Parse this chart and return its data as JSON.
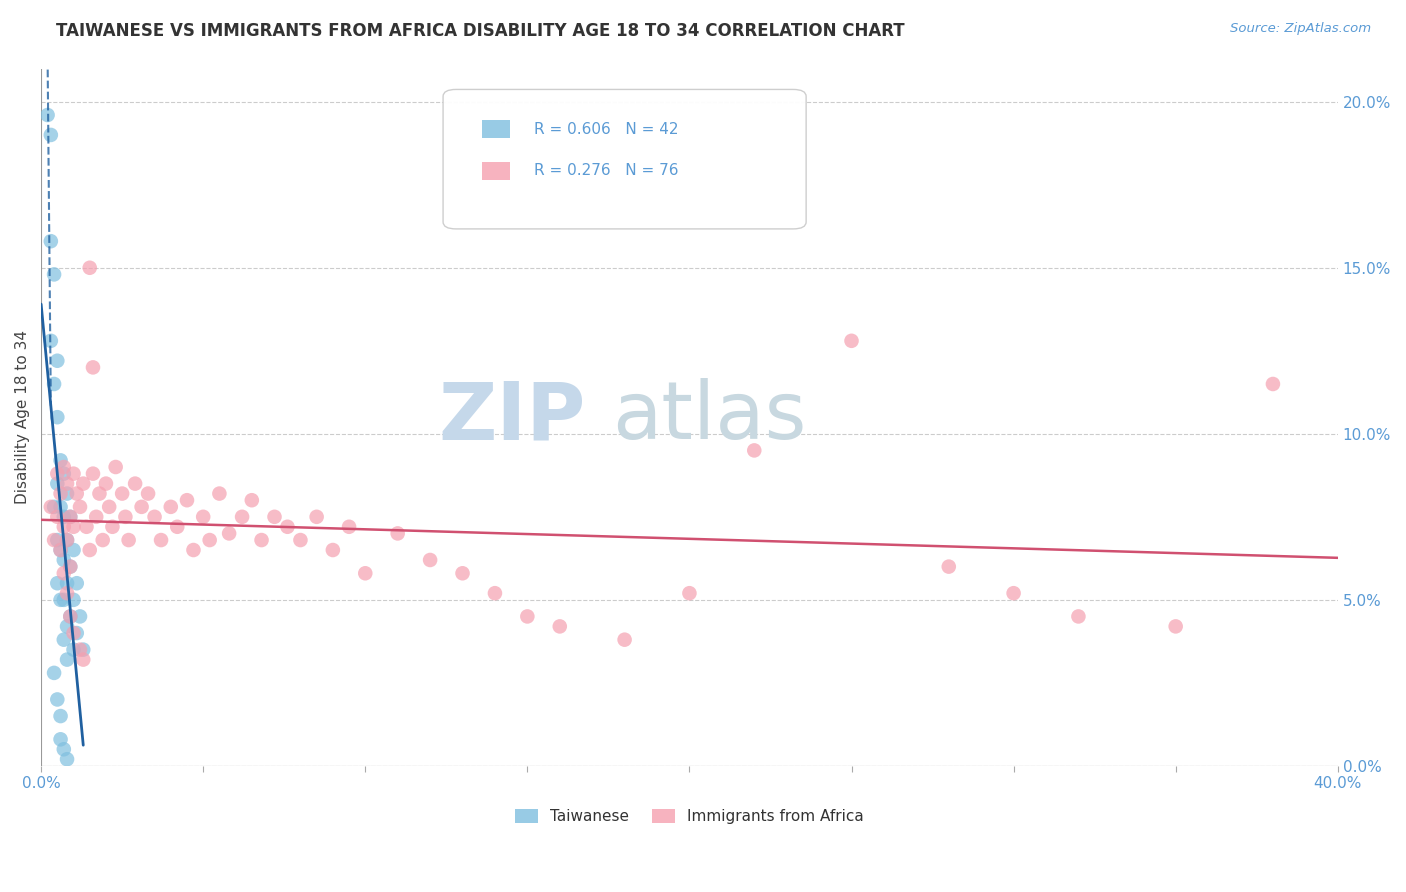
{
  "title": "TAIWANESE VS IMMIGRANTS FROM AFRICA DISABILITY AGE 18 TO 34 CORRELATION CHART",
  "source": "Source: ZipAtlas.com",
  "ylabel": "Disability Age 18 to 34",
  "xlim": [
    0.0,
    0.4
  ],
  "ylim": [
    0.0,
    0.21
  ],
  "xtick_positions": [
    0.0,
    0.05,
    0.1,
    0.15,
    0.2,
    0.25,
    0.3,
    0.35,
    0.4
  ],
  "xtick_labels": [
    "0.0%",
    "",
    "",
    "",
    "",
    "",
    "",
    "",
    "40.0%"
  ],
  "ytick_vals": [
    0.0,
    0.05,
    0.1,
    0.15,
    0.2
  ],
  "ytick_labels": [
    "0.0%",
    "5.0%",
    "10.0%",
    "15.0%",
    "20.0%"
  ],
  "taiwanese_color": "#7fbfdf",
  "african_color": "#f5a0b0",
  "taiwanese_line_color": "#2060a0",
  "african_line_color": "#d05070",
  "taiwanese_R": 0.606,
  "taiwanese_N": 42,
  "african_R": 0.276,
  "african_N": 76,
  "watermark_zip_color": "#c5d8ea",
  "watermark_atlas_color": "#c8d8e0",
  "background_color": "#ffffff",
  "tw_x": [
    0.002,
    0.003,
    0.003,
    0.003,
    0.004,
    0.004,
    0.004,
    0.005,
    0.005,
    0.005,
    0.005,
    0.005,
    0.006,
    0.006,
    0.006,
    0.006,
    0.007,
    0.007,
    0.007,
    0.007,
    0.007,
    0.008,
    0.008,
    0.008,
    0.008,
    0.008,
    0.009,
    0.009,
    0.009,
    0.01,
    0.01,
    0.01,
    0.011,
    0.011,
    0.012,
    0.013,
    0.004,
    0.005,
    0.006,
    0.006,
    0.007,
    0.008
  ],
  "tw_y": [
    0.196,
    0.19,
    0.158,
    0.128,
    0.148,
    0.115,
    0.078,
    0.122,
    0.105,
    0.085,
    0.068,
    0.055,
    0.092,
    0.078,
    0.065,
    0.05,
    0.088,
    0.075,
    0.062,
    0.05,
    0.038,
    0.082,
    0.068,
    0.055,
    0.042,
    0.032,
    0.075,
    0.06,
    0.045,
    0.065,
    0.05,
    0.035,
    0.055,
    0.04,
    0.045,
    0.035,
    0.028,
    0.02,
    0.015,
    0.008,
    0.005,
    0.002
  ],
  "af_x": [
    0.003,
    0.004,
    0.005,
    0.005,
    0.006,
    0.006,
    0.007,
    0.007,
    0.008,
    0.008,
    0.009,
    0.009,
    0.01,
    0.01,
    0.011,
    0.012,
    0.013,
    0.014,
    0.015,
    0.016,
    0.017,
    0.018,
    0.019,
    0.02,
    0.021,
    0.022,
    0.023,
    0.025,
    0.026,
    0.027,
    0.029,
    0.031,
    0.033,
    0.035,
    0.037,
    0.04,
    0.042,
    0.045,
    0.047,
    0.05,
    0.052,
    0.055,
    0.058,
    0.062,
    0.065,
    0.068,
    0.072,
    0.076,
    0.08,
    0.085,
    0.09,
    0.095,
    0.1,
    0.11,
    0.12,
    0.13,
    0.14,
    0.15,
    0.16,
    0.18,
    0.2,
    0.22,
    0.25,
    0.28,
    0.3,
    0.32,
    0.35,
    0.38,
    0.007,
    0.008,
    0.009,
    0.01,
    0.012,
    0.013,
    0.015,
    0.016
  ],
  "af_y": [
    0.078,
    0.068,
    0.075,
    0.088,
    0.065,
    0.082,
    0.072,
    0.09,
    0.068,
    0.085,
    0.075,
    0.06,
    0.088,
    0.072,
    0.082,
    0.078,
    0.085,
    0.072,
    0.065,
    0.088,
    0.075,
    0.082,
    0.068,
    0.085,
    0.078,
    0.072,
    0.09,
    0.082,
    0.075,
    0.068,
    0.085,
    0.078,
    0.082,
    0.075,
    0.068,
    0.078,
    0.072,
    0.08,
    0.065,
    0.075,
    0.068,
    0.082,
    0.07,
    0.075,
    0.08,
    0.068,
    0.075,
    0.072,
    0.068,
    0.075,
    0.065,
    0.072,
    0.058,
    0.07,
    0.062,
    0.058,
    0.052,
    0.045,
    0.042,
    0.038,
    0.052,
    0.095,
    0.128,
    0.06,
    0.052,
    0.045,
    0.042,
    0.115,
    0.058,
    0.052,
    0.045,
    0.04,
    0.035,
    0.032,
    0.15,
    0.12
  ]
}
